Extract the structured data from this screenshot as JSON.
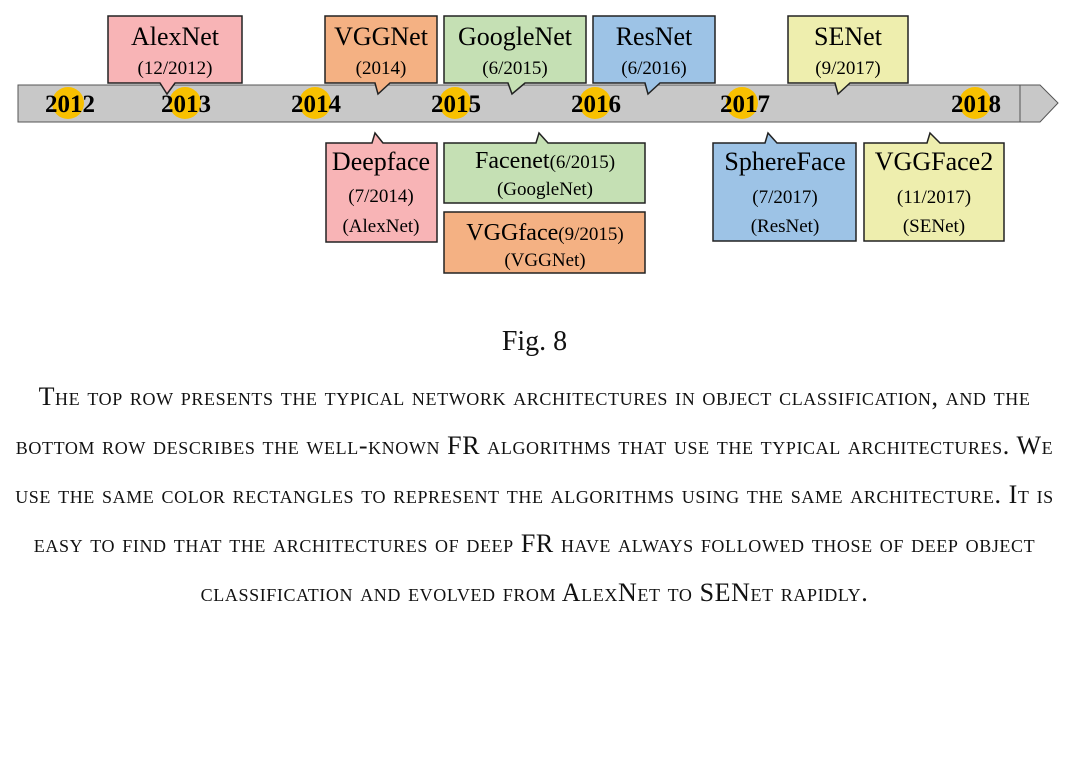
{
  "colors": {
    "alexnet": "#f8b4b6",
    "vggnet": "#f4b183",
    "googlenet": "#c5e0b4",
    "resnet": "#9dc3e6",
    "senet": "#eeeeae",
    "year_dot": "#f8c000",
    "timeline": "#c8c8c8"
  },
  "timeline": {
    "years": [
      "2012",
      "2013",
      "2014",
      "2015",
      "2016",
      "2017",
      "2018"
    ]
  },
  "top_row": [
    {
      "name": "AlexNet",
      "date": "(12/2012)",
      "arch": "alexnet"
    },
    {
      "name": "VGGNet",
      "date": "(2014)",
      "arch": "vggnet"
    },
    {
      "name": "GoogleNet",
      "date": "(6/2015)",
      "arch": "googlenet"
    },
    {
      "name": "ResNet",
      "date": "(6/2016)",
      "arch": "resnet"
    },
    {
      "name": "SENet",
      "date": "(9/2017)",
      "arch": "senet"
    }
  ],
  "bottom_row": [
    {
      "name": "Deepface",
      "date": "(7/2014)",
      "base": "(AlexNet)",
      "arch": "alexnet"
    },
    {
      "name": "Facenet",
      "date": "(6/2015)",
      "base": "(GoogleNet)",
      "arch": "googlenet"
    },
    {
      "name": "VGGface",
      "date": "(9/2015)",
      "base": "(VGGNet)",
      "arch": "vggnet"
    },
    {
      "name": "SphereFace",
      "date": "(7/2017)",
      "base": "(ResNet)",
      "arch": "resnet"
    },
    {
      "name": "VGGFace2",
      "date": "(11/2017)",
      "base": "(SENet)",
      "arch": "senet"
    }
  ],
  "caption": {
    "label": "Fig. 8",
    "text": "The top row presents the typical network architectures in object classification, and the bottom row describes the well-known FR algorithms that use the typical architectures. We use the same color rectangles to represent the algorithms using the same architecture. It is easy to find that the architectures of deep FR have always followed those of deep object classification and evolved from AlexNet to SENet rapidly."
  }
}
